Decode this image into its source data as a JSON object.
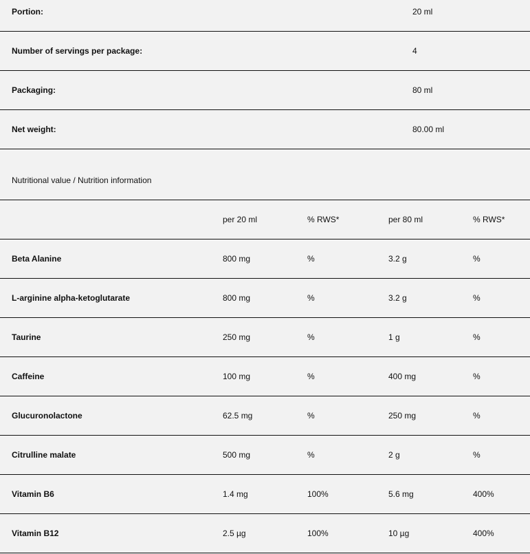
{
  "product_info": [
    {
      "label": "Portion:",
      "value": "20 ml"
    },
    {
      "label": "Number of servings per package:",
      "value": "4"
    },
    {
      "label": "Packaging:",
      "value": "80 ml"
    },
    {
      "label": "Net weight:",
      "value": "80.00 ml"
    }
  ],
  "nutrition": {
    "caption": "Nutritional value / Nutrition information",
    "headers": [
      "",
      "per 20 ml",
      "% RWS*",
      "per 80 ml",
      "% RWS*"
    ],
    "rows": [
      [
        "Beta Alanine",
        "800 mg",
        "%",
        "3.2 g",
        "%"
      ],
      [
        "L-arginine alpha-ketoglutarate",
        "800 mg",
        "%",
        "3.2 g",
        "%"
      ],
      [
        "Taurine",
        "250 mg",
        "%",
        "1 g",
        "%"
      ],
      [
        "Caffeine",
        "100 mg",
        "%",
        "400 mg",
        "%"
      ],
      [
        "Glucuronolactone",
        "62.5 mg",
        "%",
        "250 mg",
        "%"
      ],
      [
        "Citrulline malate",
        "500 mg",
        "%",
        "2 g",
        "%"
      ],
      [
        "Vitamin B6",
        "1.4 mg",
        "100%",
        "5.6 mg",
        "400%"
      ],
      [
        "Vitamin B12",
        "2.5 µg",
        "100%",
        "10 µg",
        "400%"
      ]
    ]
  }
}
